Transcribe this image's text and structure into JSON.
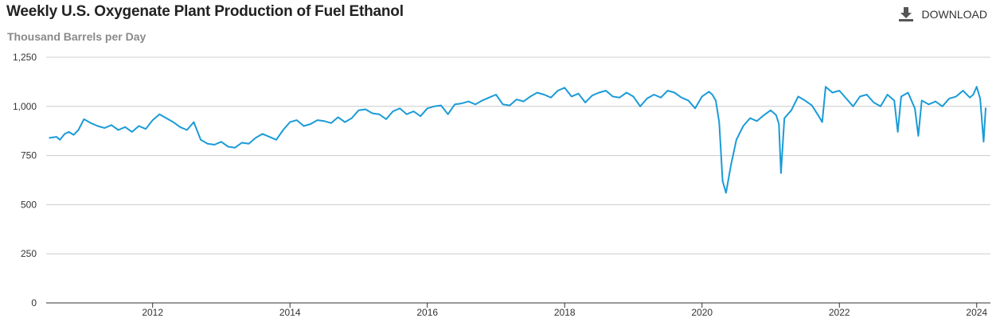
{
  "header": {
    "title": "Weekly U.S. Oxygenate Plant Production of Fuel Ethanol",
    "download_label": "DOWNLOAD",
    "download_icon": "download-icon"
  },
  "chart_data": {
    "type": "line",
    "title": "Weekly U.S. Oxygenate Plant Production of Fuel Ethanol",
    "ylabel": "Thousand Barrels per Day",
    "xlabel": "",
    "ylim": [
      0,
      1250
    ],
    "xlim": [
      2010.45,
      2024.2
    ],
    "yticks": [
      0,
      250,
      500,
      750,
      1000,
      1250
    ],
    "ytick_labels": [
      "0",
      "250",
      "500",
      "750",
      "1,000",
      "1,250"
    ],
    "xticks": [
      2012,
      2014,
      2016,
      2018,
      2020,
      2022,
      2024
    ],
    "xtick_labels": [
      "2012",
      "2014",
      "2016",
      "2018",
      "2020",
      "2022",
      "2024"
    ],
    "grid": "horizontal",
    "line_color": "#1a9bd7",
    "series": [
      {
        "x": [
          2010.5,
          2010.6,
          2010.65,
          2010.72,
          2010.78,
          2010.85,
          2010.92,
          2011.0,
          2011.1,
          2011.2,
          2011.3,
          2011.4,
          2011.5,
          2011.6,
          2011.7,
          2011.8,
          2011.9,
          2012.0,
          2012.1,
          2012.2,
          2012.3,
          2012.4,
          2012.5,
          2012.6,
          2012.7,
          2012.8,
          2012.9,
          2013.0,
          2013.1,
          2013.2,
          2013.3,
          2013.4,
          2013.5,
          2013.6,
          2013.7,
          2013.8,
          2013.9,
          2014.0,
          2014.1,
          2014.2,
          2014.3,
          2014.4,
          2014.5,
          2014.6,
          2014.7,
          2014.8,
          2014.9,
          2015.0,
          2015.1,
          2015.2,
          2015.3,
          2015.4,
          2015.5,
          2015.6,
          2015.7,
          2015.8,
          2015.9,
          2016.0,
          2016.1,
          2016.2,
          2016.3,
          2016.4,
          2016.5,
          2016.6,
          2016.7,
          2016.8,
          2016.9,
          2017.0,
          2017.1,
          2017.2,
          2017.3,
          2017.4,
          2017.5,
          2017.6,
          2017.7,
          2017.8,
          2017.9,
          2018.0,
          2018.1,
          2018.2,
          2018.3,
          2018.4,
          2018.5,
          2018.6,
          2018.7,
          2018.8,
          2018.9,
          2019.0,
          2019.1,
          2019.2,
          2019.3,
          2019.4,
          2019.5,
          2019.6,
          2019.7,
          2019.8,
          2019.9,
          2020.0,
          2020.1,
          2020.15,
          2020.2,
          2020.25,
          2020.3,
          2020.35,
          2020.42,
          2020.5,
          2020.6,
          2020.7,
          2020.8,
          2020.9,
          2021.0,
          2021.08,
          2021.12,
          2021.15,
          2021.2,
          2021.3,
          2021.4,
          2021.5,
          2021.6,
          2021.7,
          2021.75,
          2021.8,
          2021.9,
          2022.0,
          2022.1,
          2022.2,
          2022.3,
          2022.4,
          2022.5,
          2022.6,
          2022.7,
          2022.8,
          2022.85,
          2022.9,
          2023.0,
          2023.1,
          2023.15,
          2023.2,
          2023.3,
          2023.4,
          2023.5,
          2023.6,
          2023.7,
          2023.8,
          2023.9,
          2023.95,
          2024.0,
          2024.05,
          2024.1,
          2024.13
        ],
        "values": [
          840,
          845,
          830,
          860,
          870,
          855,
          880,
          935,
          915,
          900,
          890,
          905,
          880,
          895,
          870,
          900,
          885,
          930,
          960,
          940,
          920,
          895,
          880,
          920,
          830,
          810,
          805,
          820,
          795,
          790,
          815,
          810,
          840,
          860,
          845,
          830,
          880,
          920,
          930,
          900,
          910,
          930,
          925,
          915,
          945,
          920,
          940,
          980,
          985,
          965,
          960,
          935,
          975,
          990,
          960,
          975,
          950,
          990,
          1000,
          1005,
          960,
          1010,
          1015,
          1025,
          1010,
          1030,
          1045,
          1060,
          1010,
          1005,
          1035,
          1025,
          1050,
          1070,
          1060,
          1045,
          1080,
          1095,
          1050,
          1065,
          1020,
          1055,
          1070,
          1080,
          1050,
          1045,
          1070,
          1050,
          1000,
          1040,
          1060,
          1045,
          1080,
          1070,
          1045,
          1030,
          990,
          1050,
          1075,
          1060,
          1030,
          920,
          620,
          560,
          700,
          830,
          900,
          940,
          925,
          955,
          980,
          955,
          910,
          660,
          940,
          980,
          1050,
          1030,
          1005,
          950,
          920,
          1100,
          1070,
          1080,
          1040,
          1000,
          1050,
          1060,
          1020,
          1000,
          1060,
          1030,
          870,
          1050,
          1070,
          990,
          850,
          1030,
          1010,
          1025,
          1000,
          1040,
          1050,
          1080,
          1045,
          1060,
          1100,
          1040,
          820,
          990
        ]
      }
    ]
  }
}
